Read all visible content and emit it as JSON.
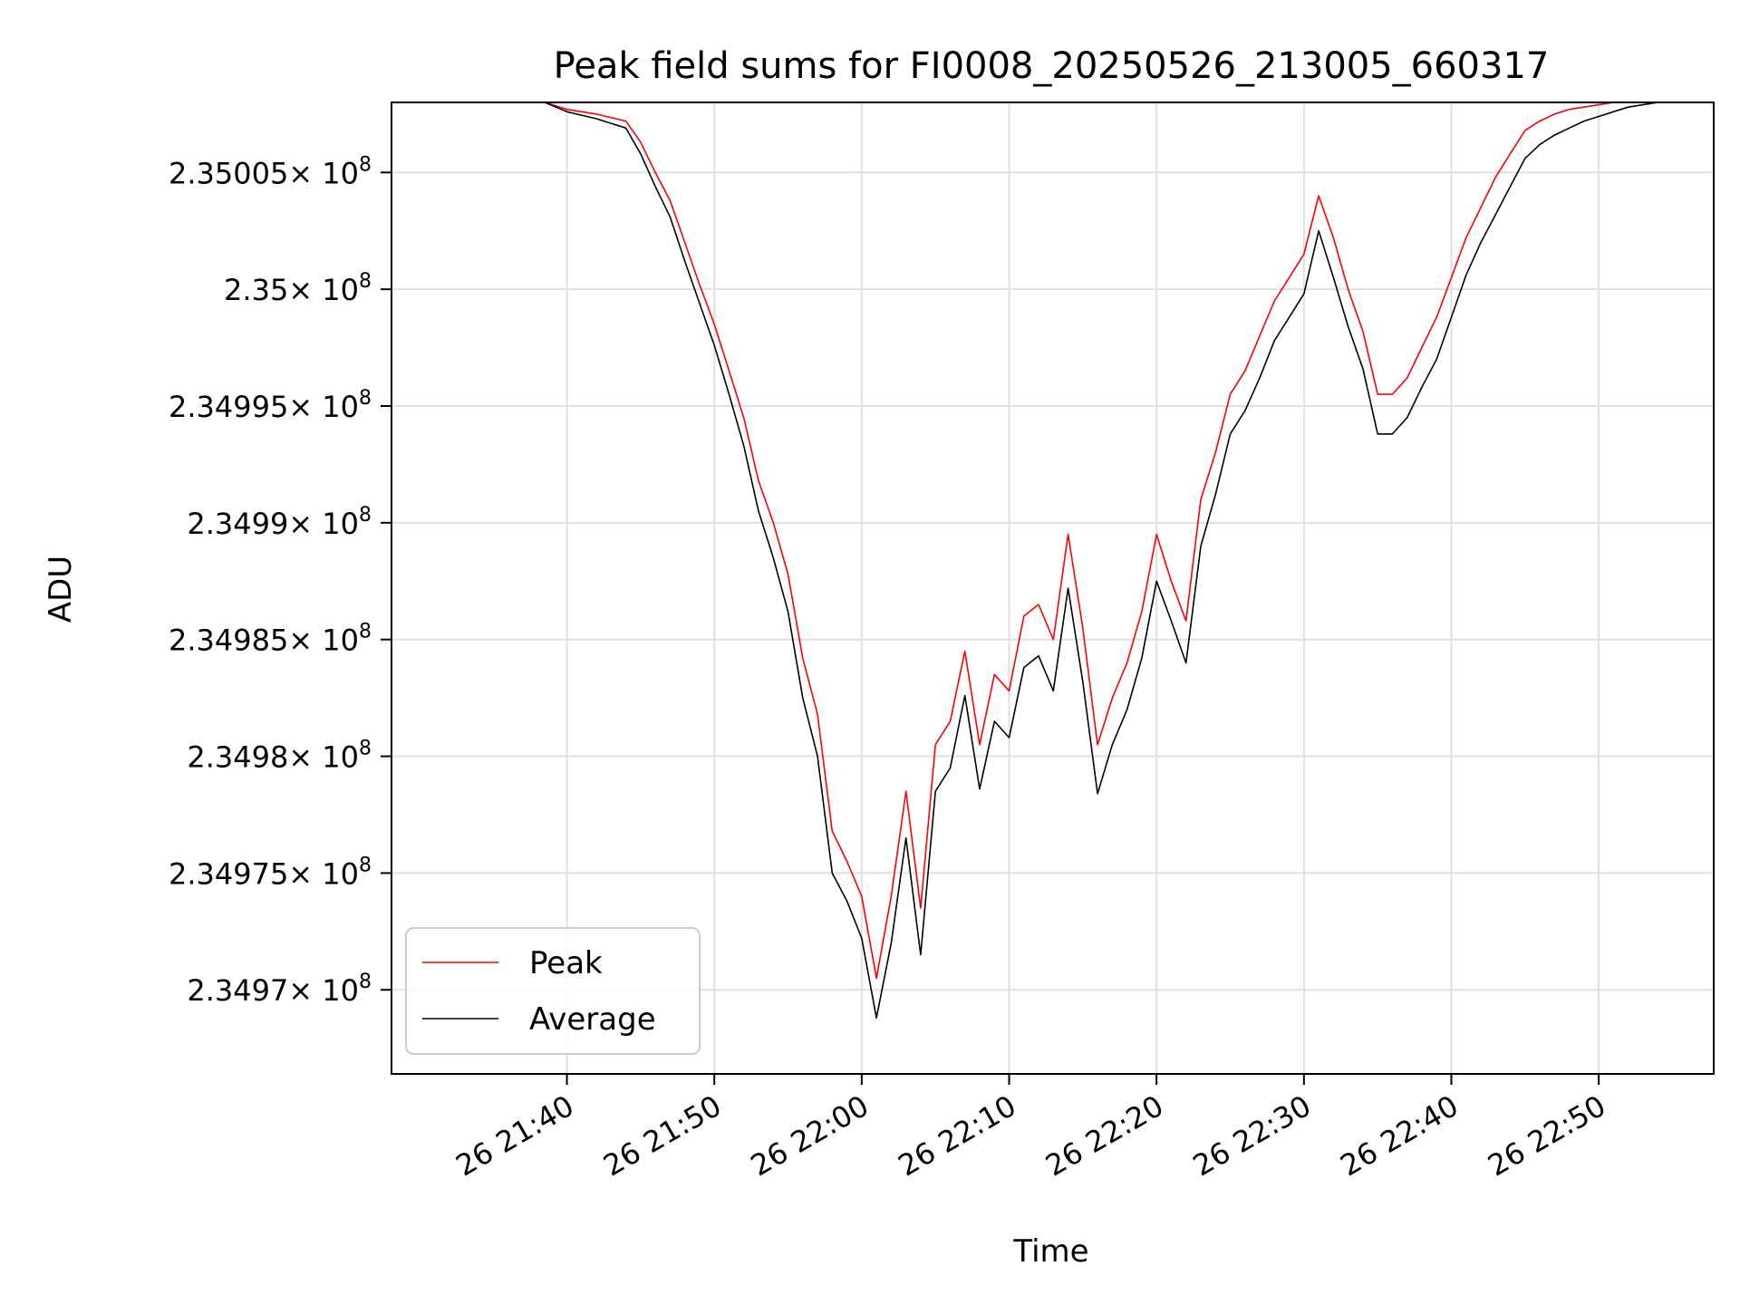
{
  "chart_data": {
    "type": "line",
    "title": "Peak field sums for FI0008_20250526_213005_660317",
    "xlabel": "Time",
    "ylabel": "ADU",
    "x_unit": "minutes after 26 21:30",
    "xlim": [
      -1.9,
      87.8
    ],
    "ylim": [
      234966400.0,
      235008000.0
    ],
    "x_ticks": [
      {
        "value": 10,
        "label": "26 21:40"
      },
      {
        "value": 20,
        "label": "26 21:50"
      },
      {
        "value": 30,
        "label": "26 22:00"
      },
      {
        "value": 40,
        "label": "26 22:10"
      },
      {
        "value": 50,
        "label": "26 22:20"
      },
      {
        "value": 60,
        "label": "26 22:30"
      },
      {
        "value": 70,
        "label": "26 22:40"
      },
      {
        "value": 80,
        "label": "26 22:50"
      }
    ],
    "y_ticks": [
      {
        "value": 234970000.0,
        "mantissa": "2.3497"
      },
      {
        "value": 234975000.0,
        "mantissa": "2.34975"
      },
      {
        "value": 234980000.0,
        "mantissa": "2.3498"
      },
      {
        "value": 234985000.0,
        "mantissa": "2.34985"
      },
      {
        "value": 234990000.0,
        "mantissa": "2.3499"
      },
      {
        "value": 234995000.0,
        "mantissa": "2.34995"
      },
      {
        "value": 235000000.0,
        "mantissa": "2.35"
      },
      {
        "value": 235005000.0,
        "mantissa": "2.35005"
      }
    ],
    "y_tick_multiplier": "× 10",
    "y_tick_exponent": "8",
    "grid": true,
    "legend_position": "lower-left",
    "series": [
      {
        "name": "Peak",
        "color": "#ff0000",
        "x": [
          8.5,
          10,
          12,
          14,
          15,
          16,
          17,
          18,
          19,
          20,
          21,
          22,
          23,
          24,
          25,
          26,
          27,
          28,
          29,
          30,
          31,
          32,
          33,
          34,
          35,
          36,
          37,
          38,
          39,
          40,
          41,
          42,
          43,
          44,
          45,
          46,
          47,
          48,
          49,
          50,
          51,
          52,
          53,
          54,
          55,
          56,
          57,
          58,
          59,
          60,
          61,
          62,
          63,
          64,
          65,
          66,
          67,
          68,
          69,
          70,
          71,
          72,
          73,
          74,
          75,
          76,
          77,
          78,
          79,
          80,
          81,
          82,
          83,
          84
        ],
        "y": [
          235008000.0,
          235007700.0,
          235007500.0,
          235007200.0,
          235006300.0,
          235005000.0,
          235003800.0,
          235002000.0,
          235000200.0,
          234998500.0,
          234996500.0,
          234994500.0,
          234991800.0,
          234990000.0,
          234987800.0,
          234984200.0,
          234981800.0,
          234976800.0,
          234975500.0,
          234974000.0,
          234970500.0,
          234974000.0,
          234978500.0,
          234973500.0,
          234980500.0,
          234981500.0,
          234984500.0,
          234980500.0,
          234983500.0,
          234982800.0,
          234986000.0,
          234986500.0,
          234985000.0,
          234989500.0,
          234985500.0,
          234980500.0,
          234982500.0,
          234984000.0,
          234986200.0,
          234989500.0,
          234987500.0,
          234985800.0,
          234991000.0,
          234993000.0,
          234995500.0,
          234996500.0,
          234998000.0,
          234999500.0,
          235000500.0,
          235001500.0,
          235004000.0,
          235002200.0,
          235000000.0,
          234998200.0,
          234995500.0,
          234995500.0,
          234996200.0,
          234997500.0,
          234998800.0,
          235000500.0,
          235002200.0,
          235003500.0,
          235004800.0,
          235005800.0,
          235006800.0,
          235007200.0,
          235007500.0,
          235007700.0,
          235007800.0,
          235007900.0,
          235008000.0,
          235008000.0,
          235008000.0,
          235008000.0
        ]
      },
      {
        "name": "Average",
        "color": "#000000",
        "x": [
          8.5,
          10,
          12,
          14,
          15,
          16,
          17,
          18,
          19,
          20,
          21,
          22,
          23,
          24,
          25,
          26,
          27,
          28,
          29,
          30,
          31,
          32,
          33,
          34,
          35,
          36,
          37,
          38,
          39,
          40,
          41,
          42,
          43,
          44,
          45,
          46,
          47,
          48,
          49,
          50,
          51,
          52,
          53,
          54,
          55,
          56,
          57,
          58,
          59,
          60,
          61,
          62,
          63,
          64,
          65,
          66,
          67,
          68,
          69,
          70,
          71,
          72,
          73,
          74,
          75,
          76,
          77,
          78,
          79,
          80,
          81,
          82,
          83,
          84
        ],
        "y": [
          235008000.0,
          235007600.0,
          235007300.0,
          235006900.0,
          235005800.0,
          235004400.0,
          235003100.0,
          235001200.0,
          234999400.0,
          234997600.0,
          234995500.0,
          234993300.0,
          234990500.0,
          234988500.0,
          234986200.0,
          234982500.0,
          234980000.0,
          234975000.0,
          234973800.0,
          234972200.0,
          234968800.0,
          234972000.0,
          234976500.0,
          234971500.0,
          234978500.0,
          234979500.0,
          234982600.0,
          234978600.0,
          234981500.0,
          234980800.0,
          234983800.0,
          234984300.0,
          234982800.0,
          234987200.0,
          234983200.0,
          234978400.0,
          234980500.0,
          234982000.0,
          234984200.0,
          234987500.0,
          234985800.0,
          234984000.0,
          234989000.0,
          234991200.0,
          234993800.0,
          234994800.0,
          234996200.0,
          234997800.0,
          234998800.0,
          234999800.0,
          235002500.0,
          235000500.0,
          234998400.0,
          234996600.0,
          234993800.0,
          234993800.0,
          234994500.0,
          234995800.0,
          234997000.0,
          234998800.0,
          235000600.0,
          235002000.0,
          235003200.0,
          235004400.0,
          235005600.0,
          235006200.0,
          235006600.0,
          235006900.0,
          235007200.0,
          235007400.0,
          235007600.0,
          235007800.0,
          235007900.0,
          235008000.0
        ]
      }
    ]
  }
}
